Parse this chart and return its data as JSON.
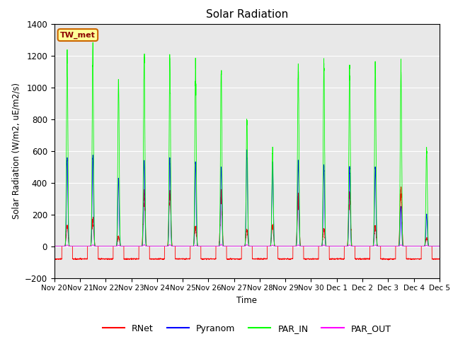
{
  "title": "Solar Radiation",
  "ylabel": "Solar Radiation (W/m2, uE/m2/s)",
  "xlabel": "Time",
  "ylim": [
    -200,
    1400
  ],
  "yticks": [
    -200,
    0,
    200,
    400,
    600,
    800,
    1000,
    1200,
    1400
  ],
  "station_label": "TW_met",
  "background_color": "#e8e8e8",
  "line_colors": {
    "RNet": "#ff0000",
    "Pyranom": "#0000ff",
    "PAR_IN": "#00ff00",
    "PAR_OUT": "#ff00ff"
  },
  "n_days": 15,
  "x_tick_labels": [
    "Nov 20",
    "Nov 21",
    "Nov 22",
    "Nov 23",
    "Nov 24",
    "Nov 25",
    "Nov 26",
    "Nov 27",
    "Nov 28",
    "Nov 29",
    "Nov 30",
    "Dec 1",
    "Dec 2",
    "Dec 3",
    "Dec 4",
    "Dec 5"
  ],
  "par_in_peaks": [
    1230,
    1250,
    1060,
    1200,
    1190,
    1150,
    1100,
    800,
    600,
    1150,
    1150,
    1140,
    1140,
    1110,
    620
  ],
  "pyranom_peaks": [
    560,
    570,
    420,
    540,
    550,
    530,
    500,
    600,
    530,
    530,
    510,
    500,
    490,
    250,
    200
  ],
  "rnet_day_peaks": [
    130,
    170,
    60,
    320,
    340,
    120,
    320,
    100,
    130,
    300,
    100,
    330,
    120,
    350,
    50
  ],
  "rnet_night": -80,
  "par_out_peaks": [
    8,
    9,
    6,
    10,
    11,
    5,
    12,
    11,
    7,
    8,
    8,
    8,
    8,
    9,
    6
  ]
}
